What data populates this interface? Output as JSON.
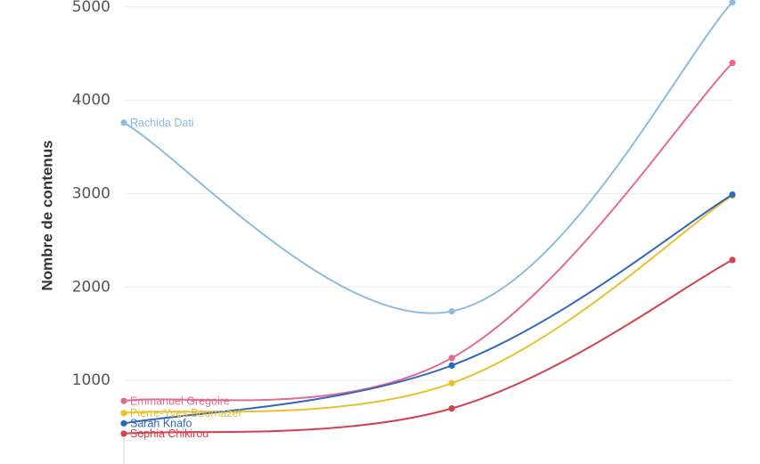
{
  "chart_data": {
    "type": "line",
    "title": "",
    "xlabel": "",
    "ylabel": "Nombre de contenus",
    "x": [
      0,
      1,
      2
    ],
    "ylim": [
      0,
      5000
    ],
    "yticks": [
      1000,
      2000,
      3000,
      4000,
      5000
    ],
    "grid": true,
    "series": [
      {
        "name": "Rachida Dati",
        "values": [
          3760,
          1740,
          5050
        ],
        "color": "#8bbbe0"
      },
      {
        "name": "Emmanuel Gregoire",
        "values": [
          780,
          1240,
          4400
        ],
        "color": "#e36b8f"
      },
      {
        "name": "Pierre-Yves Bournazel",
        "values": [
          650,
          970,
          2980
        ],
        "color": "#e9c12b"
      },
      {
        "name": "Sarah Knafo",
        "values": [
          540,
          1160,
          2990
        ],
        "color": "#2f66bf"
      },
      {
        "name": "Sophia Chikirou",
        "values": [
          430,
          700,
          2290
        ],
        "color": "#d3404f"
      }
    ]
  }
}
